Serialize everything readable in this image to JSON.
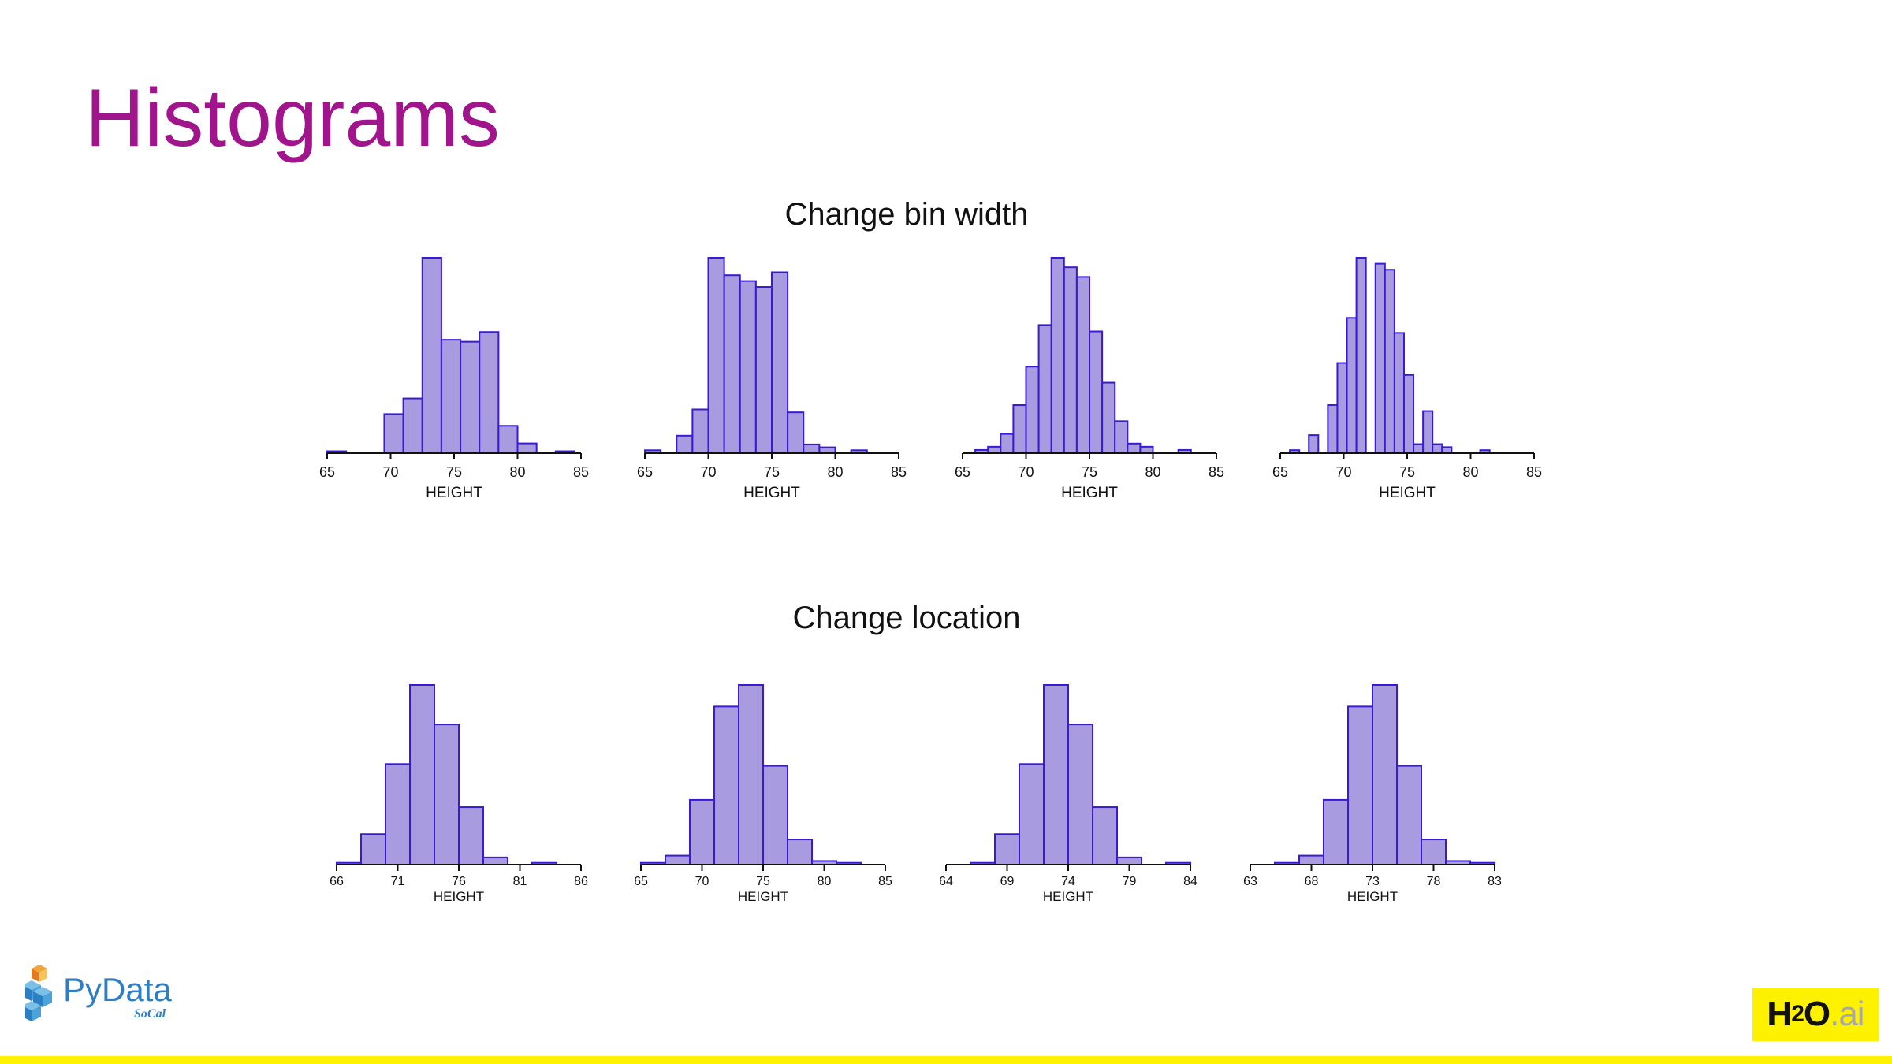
{
  "slide": {
    "title": "Histograms"
  },
  "sections": [
    {
      "title": "Change bin width"
    },
    {
      "title": "Change location"
    }
  ],
  "colors": {
    "title": "#a0148c",
    "bar_fill": "#a89be0",
    "bar_stroke": "#3a1ad6",
    "accent_bar": "#fff200"
  },
  "logos": {
    "pydata": {
      "name": "PyData",
      "sub": "SoCal"
    },
    "h2o": {
      "h": "H",
      "two": "2",
      "o": "O",
      "ai": ".ai"
    }
  },
  "chart_data": [
    {
      "type": "bar",
      "title": "",
      "xlabel": "HEIGHT",
      "ylabel": "",
      "xlim": [
        65,
        85
      ],
      "xticks": [
        65,
        70,
        75,
        80,
        85
      ],
      "bin_width": 1.5,
      "start": 65,
      "values": [
        1,
        0,
        0,
        20,
        28,
        100,
        58,
        57,
        62,
        14,
        5,
        0,
        1,
        0
      ]
    },
    {
      "type": "bar",
      "title": "",
      "xlabel": "HEIGHT",
      "ylabel": "",
      "xlim": [
        65,
        85
      ],
      "xticks": [
        65,
        70,
        75,
        80,
        85
      ],
      "bin_width": 1.25,
      "start": 65,
      "values": [
        1,
        0,
        6,
        15,
        67,
        61,
        59,
        57,
        62,
        14,
        3,
        2,
        0,
        1,
        0,
        0
      ]
    },
    {
      "type": "bar",
      "title": "",
      "xlabel": "HEIGHT",
      "ylabel": "",
      "xlim": [
        65,
        85
      ],
      "xticks": [
        65,
        70,
        75,
        80,
        85
      ],
      "bin_width": 1.0,
      "start": 65,
      "values": [
        0,
        1,
        2,
        6,
        15,
        27,
        40,
        61,
        58,
        55,
        38,
        22,
        10,
        3,
        2,
        0,
        0,
        1,
        0,
        0
      ]
    },
    {
      "type": "bar",
      "title": "",
      "xlabel": "HEIGHT",
      "ylabel": "",
      "xlim": [
        65,
        85
      ],
      "xticks": [
        65,
        70,
        75,
        80,
        85
      ],
      "bin_width": 0.75,
      "start": 65,
      "values": [
        0,
        1,
        0,
        6,
        0,
        16,
        30,
        45,
        65,
        0,
        63,
        61,
        40,
        26,
        3,
        14,
        3,
        2,
        0,
        0,
        0,
        1,
        0,
        0,
        0,
        0,
        0
      ]
    },
    {
      "type": "bar",
      "title": "",
      "xlabel": "HEIGHT",
      "ylabel": "",
      "xlim": [
        66,
        86
      ],
      "xticks": [
        66,
        71,
        76,
        81,
        86
      ],
      "bin_width": 2,
      "start": 66,
      "values": [
        1,
        17,
        56,
        100,
        78,
        32,
        4,
        0,
        1,
        0
      ]
    },
    {
      "type": "bar",
      "title": "",
      "xlabel": "HEIGHT",
      "ylabel": "",
      "xlim": [
        65,
        85
      ],
      "xticks": [
        65,
        70,
        75,
        80,
        85
      ],
      "bin_width": 2,
      "start": 65,
      "values": [
        1,
        5,
        36,
        88,
        100,
        55,
        14,
        2,
        1,
        0
      ]
    },
    {
      "type": "bar",
      "title": "",
      "xlabel": "HEIGHT",
      "ylabel": "",
      "xlim": [
        64,
        84
      ],
      "xticks": [
        64,
        69,
        74,
        79,
        84
      ],
      "bin_width": 2,
      "start": 64,
      "values": [
        0,
        1,
        17,
        56,
        100,
        78,
        32,
        4,
        0,
        1
      ]
    },
    {
      "type": "bar",
      "title": "",
      "xlabel": "HEIGHT",
      "ylabel": "",
      "xlim": [
        63,
        83
      ],
      "xticks": [
        63,
        68,
        73,
        78,
        83
      ],
      "bin_width": 2,
      "start": 63,
      "values": [
        0,
        1,
        5,
        36,
        88,
        100,
        55,
        14,
        2,
        1
      ]
    }
  ]
}
